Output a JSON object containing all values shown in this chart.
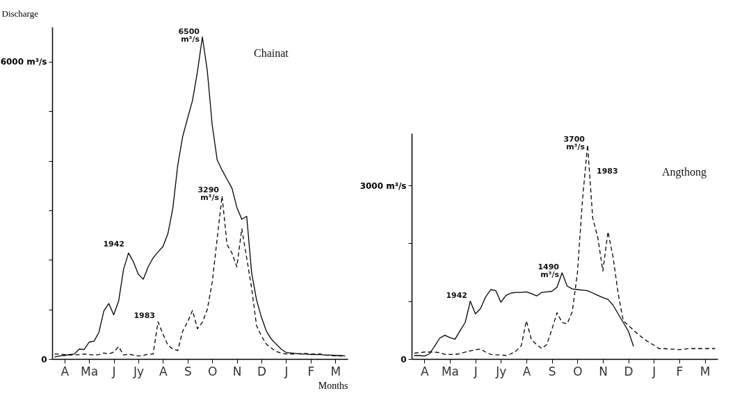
{
  "chart_data": [
    {
      "type": "line",
      "title": "Chainat",
      "ylabel": "Discharge",
      "xlabel": "Months",
      "ylim": [
        0,
        6700
      ],
      "categories": [
        null,
        null,
        "A",
        null,
        null,
        null,
        null,
        "Ma",
        null,
        null,
        null,
        null,
        "J",
        null,
        null,
        null,
        null,
        "Jy",
        null,
        null,
        null,
        null,
        "A",
        null,
        null,
        null,
        null,
        "S",
        null,
        null,
        null,
        null,
        "O",
        null,
        null,
        null,
        null,
        "N",
        null,
        null,
        null,
        null,
        "D",
        null,
        null,
        null,
        null,
        "J",
        null,
        null,
        null,
        null,
        "F",
        null,
        null,
        null,
        null,
        "M",
        null,
        null
      ],
      "yticks": [
        0,
        {
          "value": 1000,
          "label": null
        },
        {
          "value": 2000,
          "label": null
        },
        {
          "value": 3000,
          "label": null
        },
        {
          "value": 4000,
          "label": null
        },
        {
          "value": 5000,
          "label": null
        },
        {
          "value": 6000,
          "label": "6000 m³/s"
        }
      ],
      "grid": false,
      "legend": false,
      "marker": "none",
      "series": [
        {
          "color": "#000000",
          "line_style": "solid",
          "values": [
            40,
            60,
            70,
            90,
            100,
            200,
            190,
            340,
            360,
            540,
            970,
            1120,
            890,
            1170,
            1810,
            2140,
            1960,
            1710,
            1610,
            1860,
            2040,
            2160,
            2270,
            2530,
            3040,
            3910,
            4490,
            4860,
            5220,
            5800,
            6500,
            5820,
            4720,
            4020,
            3810,
            3630,
            3450,
            3060,
            2820,
            2880,
            1740,
            1190,
            840,
            560,
            400,
            300,
            200,
            130,
            120,
            110,
            100,
            100,
            90,
            90,
            90,
            80,
            80,
            70,
            70,
            60
          ]
        },
        {
          "color": "#000000",
          "line_style": "dashed",
          "values": [
            100,
            100,
            90,
            80,
            80,
            90,
            100,
            90,
            80,
            90,
            120,
            100,
            140,
            250,
            80,
            100,
            80,
            60,
            70,
            100,
            100,
            750,
            500,
            280,
            200,
            170,
            560,
            750,
            980,
            610,
            740,
            1000,
            1550,
            2430,
            3290,
            2310,
            2140,
            1860,
            2630,
            2040,
            1430,
            670,
            460,
            300,
            220,
            150,
            120,
            100,
            100,
            100,
            110,
            110,
            100,
            100,
            100,
            80,
            70,
            60,
            60,
            60
          ]
        }
      ],
      "annotations": [
        "6500 m³/s",
        "1942",
        "3290 m³/s",
        "1983"
      ]
    },
    {
      "type": "line",
      "title": "Angthong",
      "ylim": [
        0,
        3900
      ],
      "categories": [
        null,
        null,
        "A",
        null,
        null,
        null,
        null,
        "Ma",
        null,
        null,
        null,
        null,
        "J",
        null,
        null,
        null,
        null,
        "Jy",
        null,
        null,
        null,
        null,
        "A",
        null,
        null,
        null,
        null,
        "S",
        null,
        null,
        null,
        null,
        "O",
        null,
        null,
        null,
        null,
        "N",
        null,
        null,
        null,
        null,
        "D",
        null,
        null,
        null,
        null,
        "J",
        null,
        null,
        null,
        null,
        "F",
        null,
        null,
        null,
        null,
        "M",
        null,
        null
      ],
      "yticks": [
        0,
        {
          "value": 1000,
          "label": null
        },
        {
          "value": 2000,
          "label": null
        },
        {
          "value": 3000,
          "label": "3000 m³/s"
        }
      ],
      "grid": false,
      "legend": false,
      "marker": "none",
      "series": [
        {
          "color": "#000000",
          "line_style": "solid",
          "values": [
            60,
            60,
            50,
            90,
            220,
            360,
            410,
            370,
            340,
            490,
            630,
            1000,
            780,
            870,
            1070,
            1200,
            1180,
            980,
            1100,
            1140,
            1150,
            1150,
            1160,
            1130,
            1090,
            1150,
            1160,
            1170,
            1240,
            1490,
            1260,
            1210,
            1200,
            1190,
            1180,
            1140,
            1100,
            1060,
            1030,
            930,
            780,
            630,
            480,
            220,
            null,
            null,
            null,
            null,
            null,
            null,
            null,
            null,
            null,
            null,
            null,
            null,
            null,
            null,
            null,
            null
          ]
        },
        {
          "color": "#000000",
          "line_style": "dashed",
          "values": [
            100,
            110,
            120,
            120,
            120,
            110,
            80,
            80,
            80,
            90,
            120,
            140,
            160,
            170,
            120,
            80,
            70,
            70,
            60,
            90,
            140,
            230,
            660,
            330,
            250,
            180,
            250,
            510,
            800,
            630,
            610,
            820,
            1480,
            2750,
            3700,
            2440,
            2100,
            1520,
            2200,
            1760,
            1130,
            660,
            580,
            500,
            420,
            350,
            290,
            240,
            180,
            180,
            170,
            170,
            160,
            170,
            180,
            180,
            180,
            180,
            180,
            180
          ]
        }
      ],
      "annotations": [
        "3700 m³/s",
        "1983",
        "1490 m³/s",
        "1942"
      ]
    }
  ]
}
